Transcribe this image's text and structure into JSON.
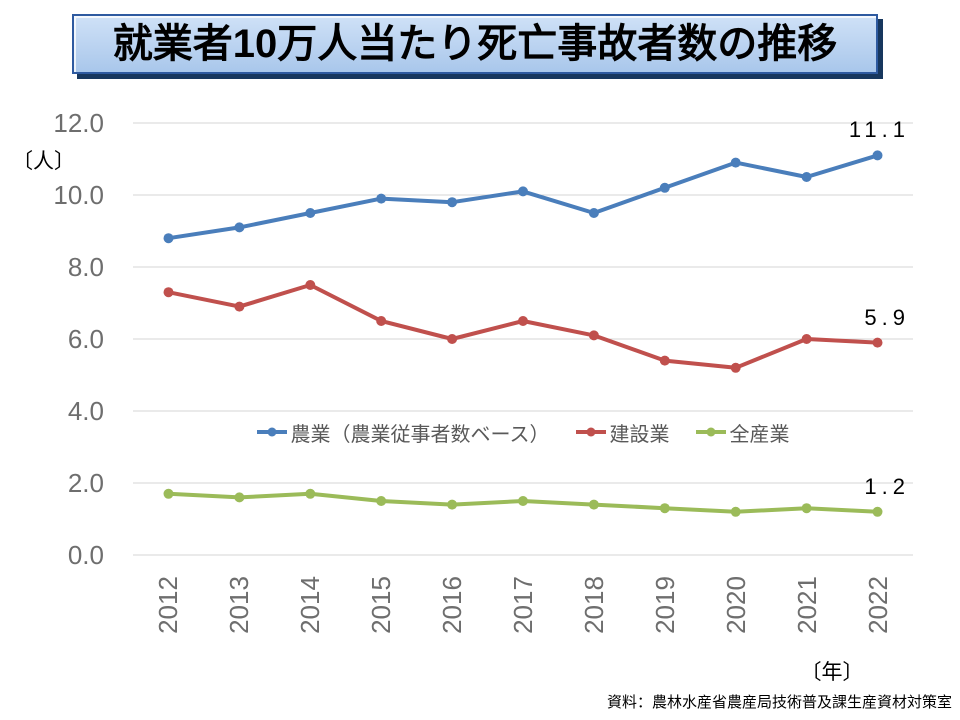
{
  "title": "就業者10万人当たり死亡事故者数の推移",
  "footer": "資料：農林水産省農産局技術普及課生産資材対策室",
  "chart": {
    "y_unit": "〔人〕",
    "x_unit": "〔年〕"
  },
  "chart_data": {
    "type": "line",
    "title": "就業者10万人当たり死亡事故者数の推移",
    "categories": [
      "2012",
      "2013",
      "2014",
      "2015",
      "2016",
      "2017",
      "2018",
      "2019",
      "2020",
      "2021",
      "2022"
    ],
    "series": [
      {
        "name": "農業（農業従事者数ベース）",
        "color": "#4A7EBB",
        "values": [
          8.8,
          9.1,
          9.5,
          9.9,
          9.8,
          10.1,
          9.5,
          10.2,
          10.9,
          10.5,
          11.1
        ],
        "end_label": "11.1"
      },
      {
        "name": "建設業",
        "color": "#C0504D",
        "values": [
          7.3,
          6.9,
          7.5,
          6.5,
          6.0,
          6.5,
          6.1,
          5.4,
          5.2,
          6.0,
          5.9
        ],
        "end_label": "5.9"
      },
      {
        "name": "全産業",
        "color": "#9BBB59",
        "values": [
          1.7,
          1.6,
          1.7,
          1.5,
          1.4,
          1.5,
          1.4,
          1.3,
          1.2,
          1.3,
          1.2
        ],
        "end_label": "1.2"
      }
    ],
    "ylabel": "〔人〕",
    "xlabel": "〔年〕",
    "ylim": [
      0,
      12
    ],
    "yticks": {
      "values": [
        12,
        10,
        8,
        6,
        4,
        2,
        0
      ],
      "labels": [
        "12.0",
        "10.0",
        "8.0",
        "6.0",
        "4.0",
        "2.0",
        "0.0"
      ]
    },
    "grid": true,
    "legend_position": "inside-middle"
  },
  "colors": {
    "grid": "#D6D6D6",
    "tick_text": "#6E6E6E",
    "legend_text": "#595959",
    "title_bg_top": "#CFE1F7",
    "title_bg_bottom": "#A9C7EB",
    "title_border": "#2E5AA0",
    "title_shadow": "#17375E"
  }
}
